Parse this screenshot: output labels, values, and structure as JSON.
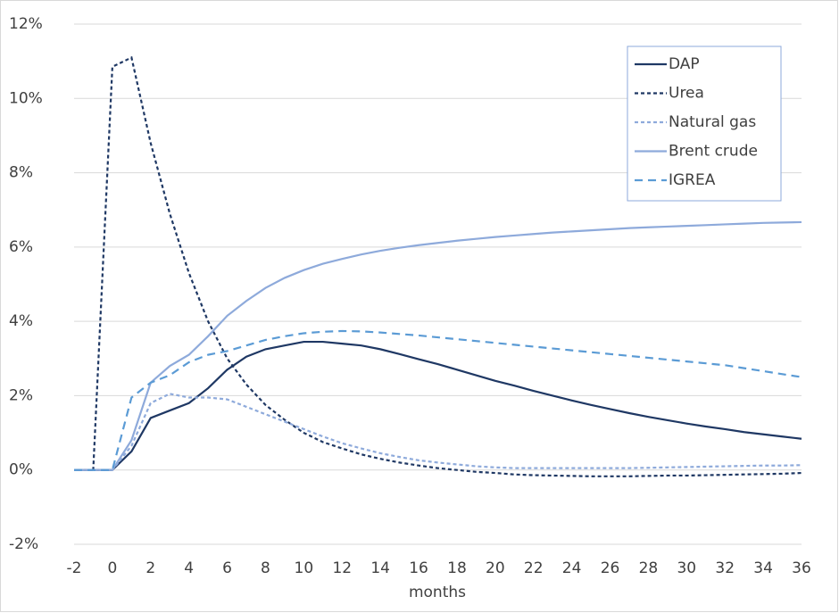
{
  "chart_data": {
    "type": "line",
    "x": [
      -2,
      -1,
      0,
      1,
      2,
      3,
      4,
      5,
      6,
      7,
      8,
      9,
      10,
      11,
      12,
      13,
      14,
      15,
      16,
      17,
      18,
      19,
      20,
      21,
      22,
      23,
      24,
      25,
      26,
      27,
      28,
      29,
      30,
      31,
      32,
      33,
      34,
      35,
      36
    ],
    "xlabel": "months",
    "xlim": [
      -2,
      36
    ],
    "xticks": [
      -2,
      0,
      2,
      4,
      6,
      8,
      10,
      12,
      14,
      16,
      18,
      20,
      22,
      24,
      26,
      28,
      30,
      32,
      34,
      36
    ],
    "ylim": [
      -2,
      12
    ],
    "yticks": [
      {
        "value": -2,
        "label": "-2%"
      },
      {
        "value": 0,
        "label": "0%"
      },
      {
        "value": 2,
        "label": "2%"
      },
      {
        "value": 4,
        "label": "4%"
      },
      {
        "value": 6,
        "label": "6%"
      },
      {
        "value": 8,
        "label": "8%"
      },
      {
        "value": 10,
        "label": "10%"
      },
      {
        "value": 12,
        "label": "12%"
      }
    ],
    "grid": true,
    "legend": "top-right",
    "series": [
      {
        "name": "DAP",
        "color": "#1f3864",
        "dash": "none",
        "values": [
          0,
          0,
          0,
          0.5,
          1.4,
          1.6,
          1.8,
          2.2,
          2.7,
          3.05,
          3.25,
          3.35,
          3.45,
          3.45,
          3.4,
          3.35,
          3.25,
          3.12,
          2.98,
          2.85,
          2.7,
          2.55,
          2.4,
          2.27,
          2.13,
          2.0,
          1.87,
          1.75,
          1.64,
          1.53,
          1.43,
          1.34,
          1.25,
          1.17,
          1.1,
          1.02,
          0.96,
          0.9,
          0.84
        ]
      },
      {
        "name": "Urea",
        "color": "#1f3864",
        "dash": "4,3",
        "values": [
          0,
          0,
          10.85,
          11.1,
          8.8,
          6.9,
          5.3,
          4.0,
          3.0,
          2.3,
          1.75,
          1.35,
          1.0,
          0.75,
          0.58,
          0.42,
          0.3,
          0.2,
          0.12,
          0.05,
          0.0,
          -0.05,
          -0.08,
          -0.12,
          -0.14,
          -0.15,
          -0.16,
          -0.17,
          -0.17,
          -0.17,
          -0.16,
          -0.15,
          -0.15,
          -0.14,
          -0.13,
          -0.12,
          -0.11,
          -0.1,
          -0.08
        ]
      },
      {
        "name": "Natural gas",
        "color": "#8eaadb",
        "dash": "4,3",
        "values": [
          0,
          0,
          0,
          0.65,
          1.8,
          2.05,
          1.95,
          1.95,
          1.9,
          1.7,
          1.5,
          1.3,
          1.1,
          0.9,
          0.72,
          0.58,
          0.45,
          0.35,
          0.26,
          0.2,
          0.15,
          0.1,
          0.07,
          0.05,
          0.05,
          0.05,
          0.05,
          0.05,
          0.05,
          0.05,
          0.06,
          0.07,
          0.08,
          0.09,
          0.1,
          0.11,
          0.12,
          0.12,
          0.13
        ]
      },
      {
        "name": "Brent crude",
        "color": "#8eaadb",
        "dash": "none",
        "values": [
          0,
          0,
          0,
          0.8,
          2.35,
          2.8,
          3.1,
          3.6,
          4.15,
          4.55,
          4.9,
          5.17,
          5.38,
          5.55,
          5.68,
          5.8,
          5.9,
          5.98,
          6.05,
          6.11,
          6.17,
          6.22,
          6.27,
          6.31,
          6.35,
          6.39,
          6.42,
          6.45,
          6.48,
          6.51,
          6.53,
          6.55,
          6.57,
          6.59,
          6.61,
          6.63,
          6.65,
          6.66,
          6.67
        ]
      },
      {
        "name": "IGREA",
        "color": "#5b9bd5",
        "dash": "9,6",
        "values": [
          0,
          0,
          0,
          1.95,
          2.35,
          2.55,
          2.9,
          3.1,
          3.2,
          3.35,
          3.5,
          3.6,
          3.68,
          3.72,
          3.74,
          3.73,
          3.7,
          3.66,
          3.62,
          3.57,
          3.52,
          3.47,
          3.42,
          3.37,
          3.32,
          3.27,
          3.22,
          3.17,
          3.12,
          3.07,
          3.02,
          2.97,
          2.92,
          2.87,
          2.82,
          2.74,
          2.66,
          2.58,
          2.5
        ]
      }
    ]
  }
}
